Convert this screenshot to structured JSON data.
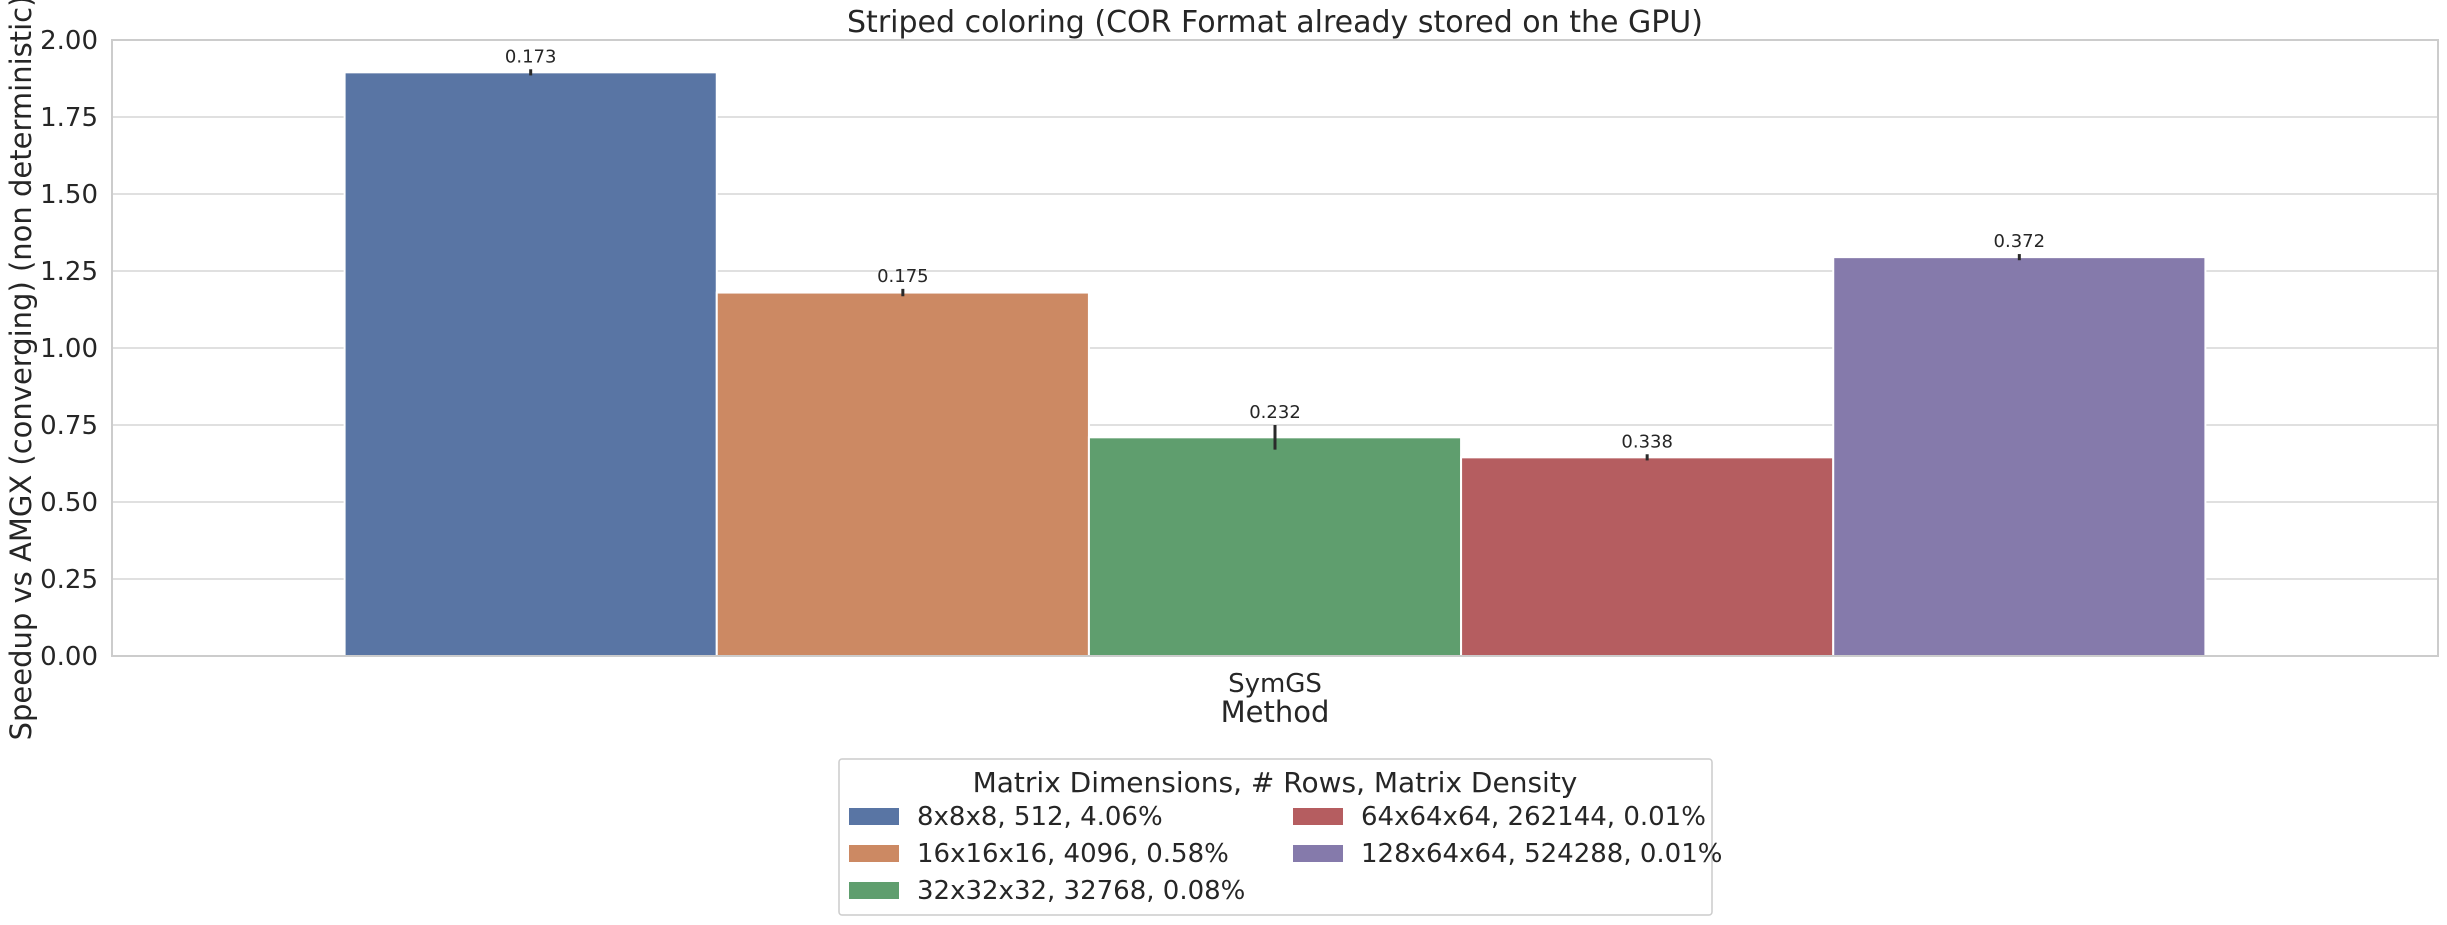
{
  "chart_data": {
    "type": "bar",
    "title": "Striped coloring (COR Format already stored on the GPU)",
    "xlabel": "Method",
    "ylabel": "Speedup vs AMGX (converging) (non deterministic)",
    "categories": [
      "SymGS"
    ],
    "ylim": [
      0,
      2.0
    ],
    "yticks": [
      "0.00",
      "0.25",
      "0.50",
      "0.75",
      "1.00",
      "1.25",
      "1.50",
      "1.75",
      "2.00"
    ],
    "grid": true,
    "legend_title": "Matrix Dimensions, # Rows, Matrix Density",
    "legend_position": "bottom-center",
    "series": [
      {
        "name": "8x8x8, 512, 4.06%",
        "color": "#5975a4",
        "values": [
          1.895
        ],
        "err": [
          0.01
        ],
        "label": "0.173"
      },
      {
        "name": "16x16x16, 4096, 0.58%",
        "color": "#cc8963",
        "values": [
          1.18
        ],
        "err": [
          0.012
        ],
        "label": "0.175"
      },
      {
        "name": "32x32x32, 32768, 0.08%",
        "color": "#5f9e6e",
        "values": [
          0.71
        ],
        "err": [
          0.04
        ],
        "label": "0.232"
      },
      {
        "name": "64x64x64, 262144, 0.01%",
        "color": "#b55d60",
        "values": [
          0.645
        ],
        "err": [
          0.01
        ],
        "label": "0.338"
      },
      {
        "name": "128x64x64, 524288, 0.01%",
        "color": "#857aab",
        "values": [
          1.295
        ],
        "err": [
          0.01
        ],
        "label": "0.372"
      }
    ]
  }
}
